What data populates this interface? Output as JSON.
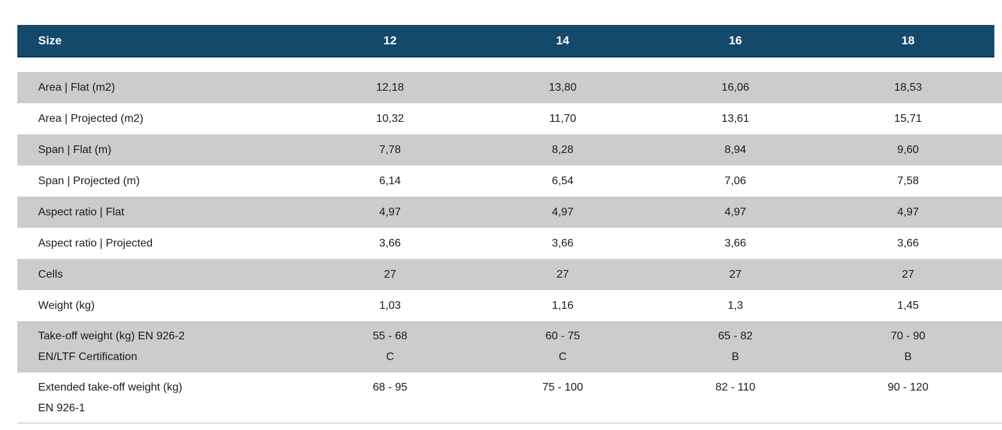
{
  "colors": {
    "header_bg": "#15496B",
    "header_text": "#FFFFFF",
    "row_alt_bg": "#CCCCCC",
    "row_bg": "#FFFFFF",
    "body_text": "#1A1A1A"
  },
  "table": {
    "header": {
      "label": "Size",
      "sizes": [
        "12",
        "14",
        "16",
        "18"
      ]
    },
    "rows": [
      {
        "label": "Area | Flat (m2)",
        "values": [
          "12,18",
          "13,80",
          "16,06",
          "18,53"
        ]
      },
      {
        "label": "Area | Projected (m2)",
        "values": [
          "10,32",
          "11,70",
          "13,61",
          "15,71"
        ]
      },
      {
        "label": "Span | Flat (m)",
        "values": [
          "7,78",
          "8,28",
          "8,94",
          "9,60"
        ]
      },
      {
        "label": "Span | Projected (m)",
        "values": [
          "6,14",
          "6,54",
          "7,06",
          "7,58"
        ]
      },
      {
        "label": "Aspect ratio | Flat",
        "values": [
          "4,97",
          "4,97",
          "4,97",
          "4,97"
        ]
      },
      {
        "label": "Aspect ratio | Projected",
        "values": [
          "3,66",
          "3,66",
          "3,66",
          "3,66"
        ]
      },
      {
        "label": "Cells",
        "values": [
          "27",
          "27",
          "27",
          "27"
        ]
      },
      {
        "label": "Weight (kg)",
        "values": [
          "1,03",
          "1,16",
          "1,3",
          "1,45"
        ]
      },
      {
        "label_line1": "Take-off weight (kg) EN 926-2",
        "label_line2": "EN/LTF Certification",
        "values_line1": [
          "55 - 68",
          "60 - 75",
          "65 - 82",
          "70 - 90"
        ],
        "values_line2": [
          "C",
          "C",
          "B",
          "B"
        ]
      },
      {
        "label_line1": "Extended take-off weight (kg)",
        "label_line2": "EN 926-1",
        "values_line1": [
          "68 - 95",
          "75 - 100",
          "82 - 110",
          "90 - 120"
        ],
        "values_line2": [
          "",
          "",
          "",
          ""
        ]
      }
    ]
  }
}
